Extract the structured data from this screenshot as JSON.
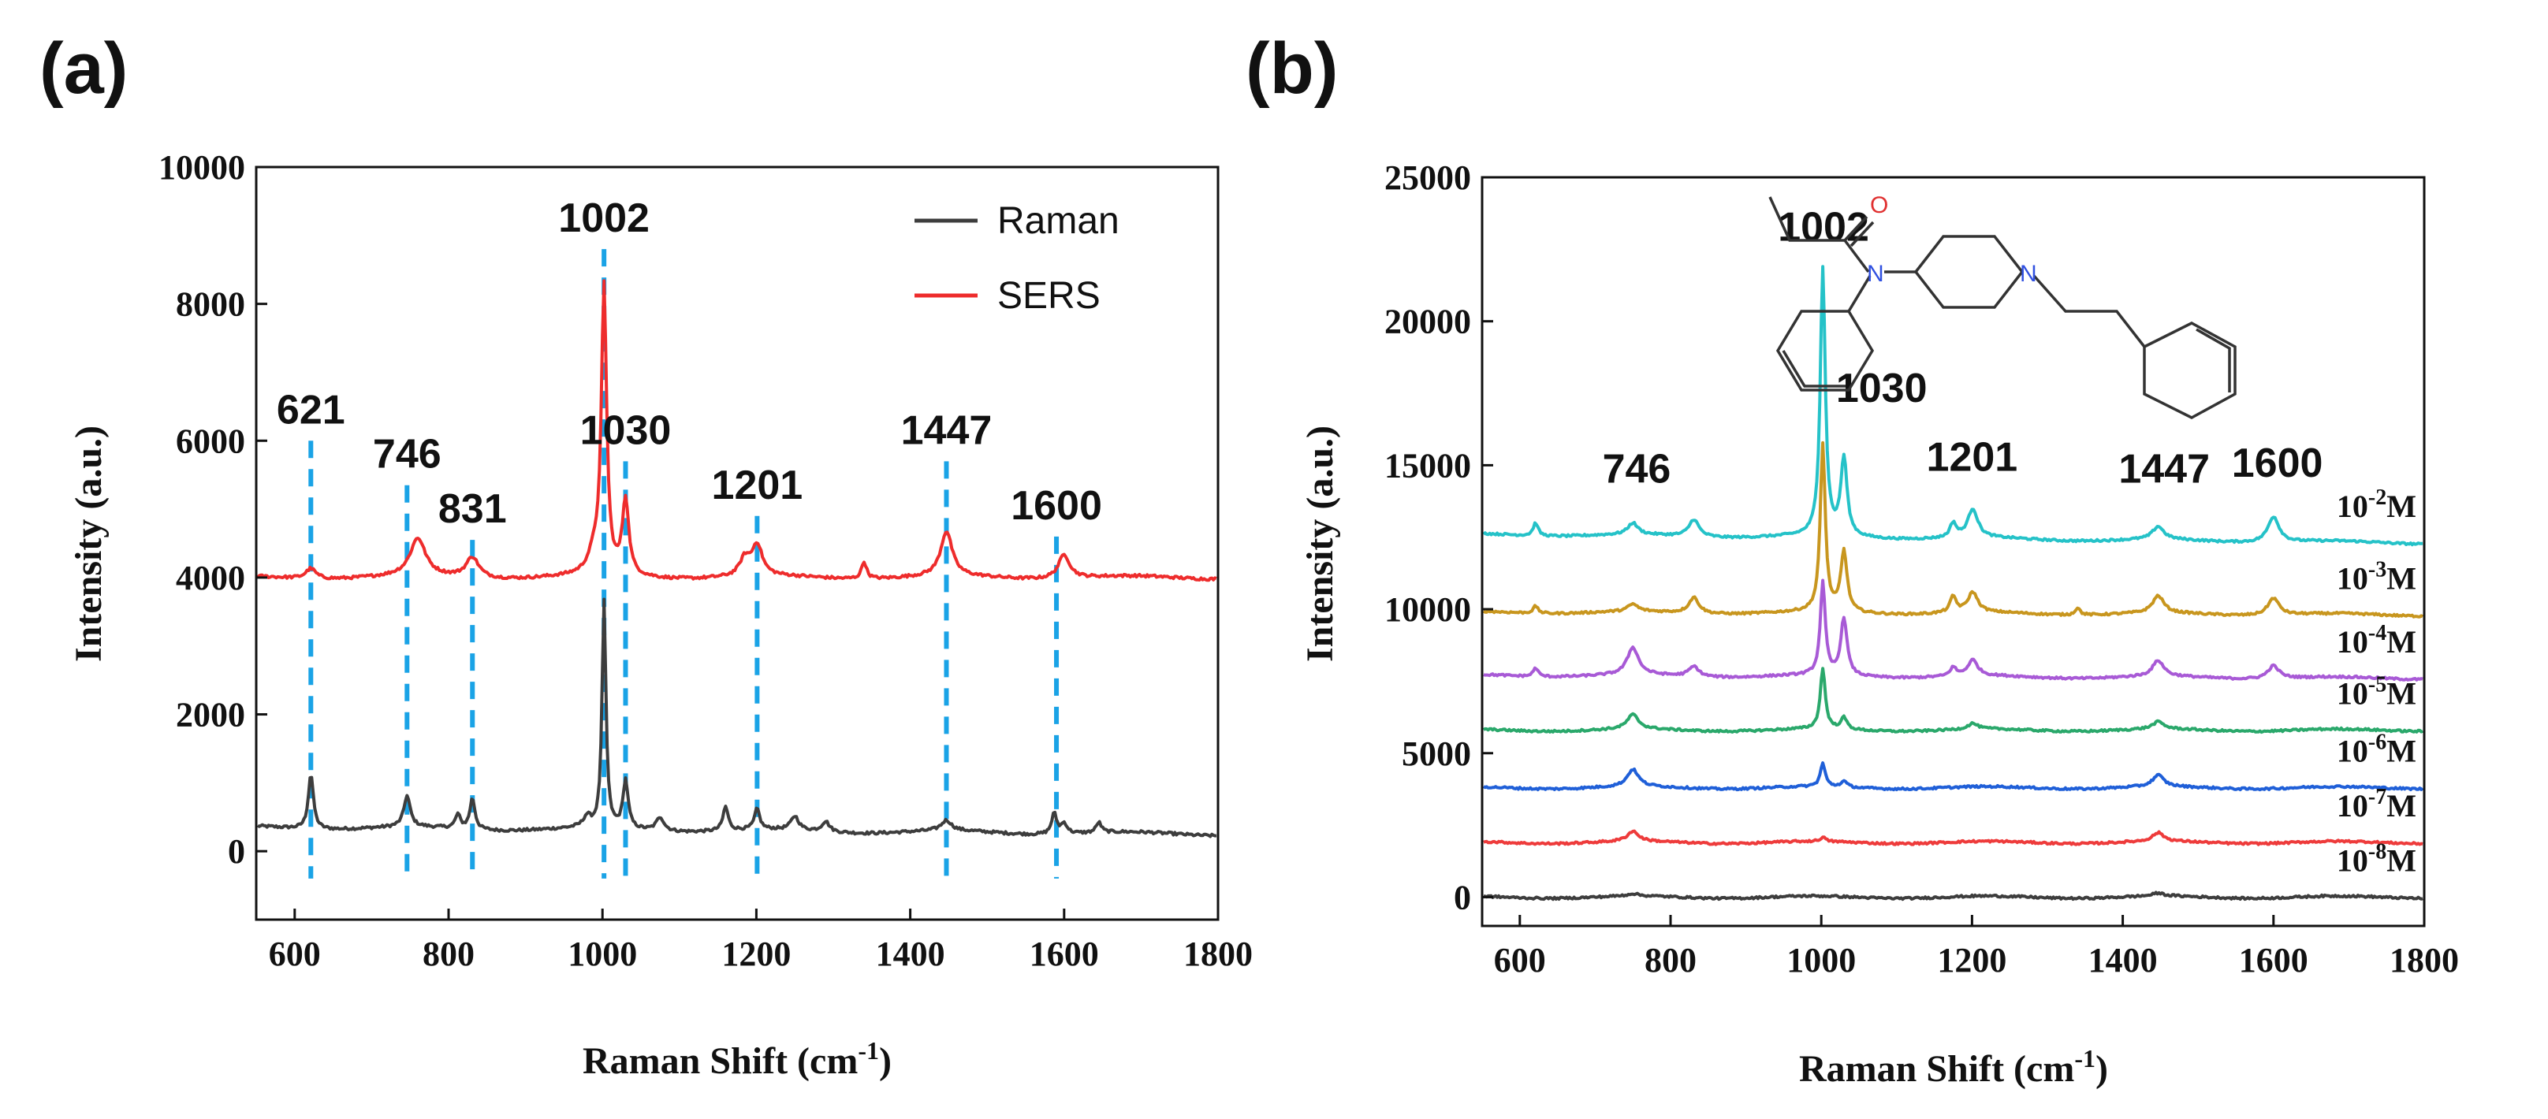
{
  "chart_data": [
    {
      "type": "line",
      "panel_label": "(a)",
      "xlabel": "Raman Shift (cm",
      "xlabel_sup": "-1",
      "xlabel_end": ")",
      "ylabel": "Intensity (a.u.)",
      "xlim": [
        550,
        1800
      ],
      "ylim": [
        -1000,
        10000
      ],
      "xticks": [
        "600",
        "800",
        "1000",
        "1200",
        "1400",
        "1600",
        "1800"
      ],
      "yticks": [
        "0",
        "2000",
        "4000",
        "6000",
        "8000",
        "10000"
      ],
      "legend": {
        "position": "top-right",
        "entries": [
          "Raman",
          "SERS"
        ]
      },
      "series": [
        {
          "name": "Raman",
          "color": "#3d3d3d",
          "baseline": 350,
          "end_baseline": 250,
          "peaks": [
            [
              621,
              800,
              4
            ],
            [
              746,
              450,
              5
            ],
            [
              812,
              200,
              4
            ],
            [
              831,
              450,
              4
            ],
            [
              980,
              150,
              6
            ],
            [
              1002,
              3300,
              3
            ],
            [
              1030,
              700,
              4
            ],
            [
              1075,
              200,
              6
            ],
            [
              1160,
              350,
              4
            ],
            [
              1201,
              300,
              4
            ],
            [
              1250,
              200,
              6
            ],
            [
              1290,
              150,
              6
            ],
            [
              1447,
              150,
              8
            ],
            [
              1587,
              300,
              4
            ],
            [
              1600,
              150,
              5
            ],
            [
              1645,
              150,
              4
            ]
          ]
        },
        {
          "name": "SERS",
          "color": "#ee2c2c",
          "baseline": 4000,
          "end_baseline": 4000,
          "peaks": [
            [
              621,
              150,
              8
            ],
            [
              760,
              550,
              12
            ],
            [
              831,
              300,
              10
            ],
            [
              990,
              300,
              10
            ],
            [
              1002,
              4150,
              4
            ],
            [
              1030,
              1100,
              5
            ],
            [
              1185,
              250,
              8
            ],
            [
              1201,
              450,
              8
            ],
            [
              1340,
              250,
              4
            ],
            [
              1447,
              650,
              9
            ],
            [
              1600,
              350,
              9
            ]
          ]
        }
      ],
      "peak_markers": [
        {
          "x": 621,
          "label": "621",
          "top": 6000
        },
        {
          "x": 746,
          "label": "746",
          "top": 5350
        },
        {
          "x": 831,
          "label": "831",
          "top": 4550
        },
        {
          "x": 1002,
          "label": "1002",
          "top": 8800
        },
        {
          "x": 1030,
          "label": "1030",
          "top": 5700
        },
        {
          "x": 1201,
          "label": "1201",
          "top": 4900
        },
        {
          "x": 1447,
          "label": "1447",
          "top": 5700
        },
        {
          "x": 1590,
          "label": "1600",
          "top": 4600
        }
      ],
      "marker_bottom": -400,
      "marker_color": "#1aa3e6"
    },
    {
      "type": "line",
      "panel_label": "(b)",
      "xlabel": "Raman Shift (cm",
      "xlabel_sup": "-1",
      "xlabel_end": ")",
      "ylabel": "Intensity (a.u.)",
      "xlim": [
        550,
        1800
      ],
      "ylim": [
        -1000,
        25000
      ],
      "xticks": [
        "600",
        "800",
        "1000",
        "1200",
        "1400",
        "1600",
        "1800"
      ],
      "yticks": [
        "0",
        "5000",
        "10000",
        "15000",
        "20000",
        "25000"
      ],
      "peak_labels": [
        {
          "label": "746",
          "x": 755,
          "y": 14400
        },
        {
          "label": "1002",
          "x": 1003,
          "y": 22800
        },
        {
          "label": "1030",
          "x": 1080,
          "y": 17200
        },
        {
          "label": "1201",
          "x": 1200,
          "y": 14800
        },
        {
          "label": "1447",
          "x": 1455,
          "y": 14400
        },
        {
          "label": "1600",
          "x": 1605,
          "y": 14600
        }
      ],
      "series": [
        {
          "name": "10-2M",
          "base": "10",
          "exp": "-2",
          "unit": "M",
          "color": "#25c2c8",
          "baseline": 12600,
          "end_baseline": 12300,
          "peaks": [
            [
              621,
              450,
              4
            ],
            [
              750,
              400,
              8
            ],
            [
              831,
              600,
              8
            ],
            [
              1002,
              9300,
              4
            ],
            [
              1030,
              2700,
              5
            ],
            [
              1175,
              500,
              5
            ],
            [
              1201,
              1000,
              8
            ],
            [
              1447,
              450,
              9
            ],
            [
              1600,
              900,
              9
            ]
          ]
        },
        {
          "name": "10-3M",
          "base": "10",
          "exp": "-3",
          "unit": "M",
          "color": "#c8961e",
          "baseline": 9900,
          "end_baseline": 9800,
          "peaks": [
            [
              621,
              250,
              4
            ],
            [
              750,
              250,
              8
            ],
            [
              831,
              550,
              8
            ],
            [
              1002,
              5800,
              4
            ],
            [
              1030,
              2100,
              5
            ],
            [
              1175,
              550,
              5
            ],
            [
              1201,
              700,
              8
            ],
            [
              1340,
              250,
              4
            ],
            [
              1447,
              600,
              9
            ],
            [
              1600,
              600,
              9
            ]
          ]
        },
        {
          "name": "10-4M",
          "base": "10",
          "exp": "-4",
          "unit": "M",
          "color": "#a85ad6",
          "baseline": 7700,
          "end_baseline": 7600,
          "peaks": [
            [
              621,
              300,
              4
            ],
            [
              750,
              950,
              9
            ],
            [
              831,
              350,
              8
            ],
            [
              1002,
              3200,
              4
            ],
            [
              1030,
              2000,
              5
            ],
            [
              1175,
              300,
              5
            ],
            [
              1201,
              550,
              8
            ],
            [
              1447,
              550,
              9
            ],
            [
              1600,
              450,
              9
            ]
          ]
        },
        {
          "name": "10-5M",
          "base": "10",
          "exp": "-5",
          "unit": "M",
          "color": "#2aa86b",
          "baseline": 5800,
          "end_baseline": 5800,
          "peaks": [
            [
              750,
              500,
              9
            ],
            [
              1002,
              2100,
              4
            ],
            [
              1030,
              400,
              5
            ],
            [
              1201,
              200,
              8
            ],
            [
              1447,
              250,
              9
            ]
          ]
        },
        {
          "name": "10-6M",
          "base": "10",
          "exp": "-6",
          "unit": "M",
          "color": "#1f5fd8",
          "baseline": 3800,
          "end_baseline": 3800,
          "peaks": [
            [
              750,
              600,
              9
            ],
            [
              1002,
              800,
              4
            ],
            [
              1030,
              200,
              5
            ],
            [
              1447,
              400,
              9
            ]
          ]
        },
        {
          "name": "10-7M",
          "base": "10",
          "exp": "-7",
          "unit": "M",
          "color": "#ee3b3b",
          "baseline": 1900,
          "end_baseline": 1900,
          "peaks": [
            [
              750,
              350,
              9
            ],
            [
              1002,
              150,
              4
            ],
            [
              1447,
              300,
              9
            ]
          ]
        },
        {
          "name": "10-8M",
          "base": "10",
          "exp": "-8",
          "unit": "M",
          "color": "#3d3d3d",
          "baseline": 0,
          "end_baseline": 0,
          "peaks": [
            [
              750,
              80,
              9
            ],
            [
              1447,
              100,
              9
            ]
          ]
        }
      ],
      "molecule": {
        "heteroatoms": [
          "O",
          "N",
          "N"
        ],
        "colors": {
          "O": "#e03030",
          "N": "#3050e0",
          "bond": "#333333"
        }
      }
    }
  ]
}
